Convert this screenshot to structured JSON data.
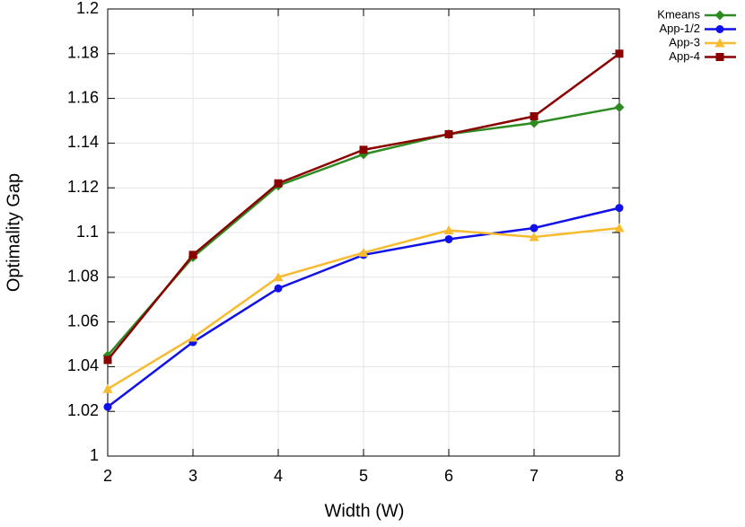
{
  "chart_data": {
    "type": "line",
    "x_label": "Width (W)",
    "y_label": "Optimality Gap",
    "x": [
      2,
      3,
      4,
      5,
      6,
      7,
      8
    ],
    "series": [
      {
        "name": "Kmeans",
        "color": "#2e8b22",
        "marker": "diamond",
        "values": [
          1.045,
          1.089,
          1.121,
          1.135,
          1.144,
          1.149,
          1.156
        ]
      },
      {
        "name": "App-1/2",
        "color": "#1010e8",
        "marker": "circle",
        "values": [
          1.022,
          1.051,
          1.075,
          1.09,
          1.097,
          1.102,
          1.111
        ]
      },
      {
        "name": "App-3",
        "color": "#f7bb2f",
        "marker": "triangle",
        "values": [
          1.03,
          1.053,
          1.08,
          1.091,
          1.101,
          1.098,
          1.102
        ]
      },
      {
        "name": "App-4",
        "color": "#8b0000",
        "marker": "square",
        "values": [
          1.043,
          1.09,
          1.122,
          1.137,
          1.144,
          1.152,
          1.18
        ]
      }
    ],
    "xlim": [
      2,
      8
    ],
    "xticks": [
      2,
      3,
      4,
      5,
      6,
      7,
      8
    ],
    "ylim": [
      1,
      1.2
    ],
    "yticks": [
      1,
      1.02,
      1.04,
      1.06,
      1.08,
      1.1,
      1.12,
      1.14,
      1.16,
      1.18,
      1.2
    ],
    "grid": true,
    "legend": "outside-top-right"
  }
}
